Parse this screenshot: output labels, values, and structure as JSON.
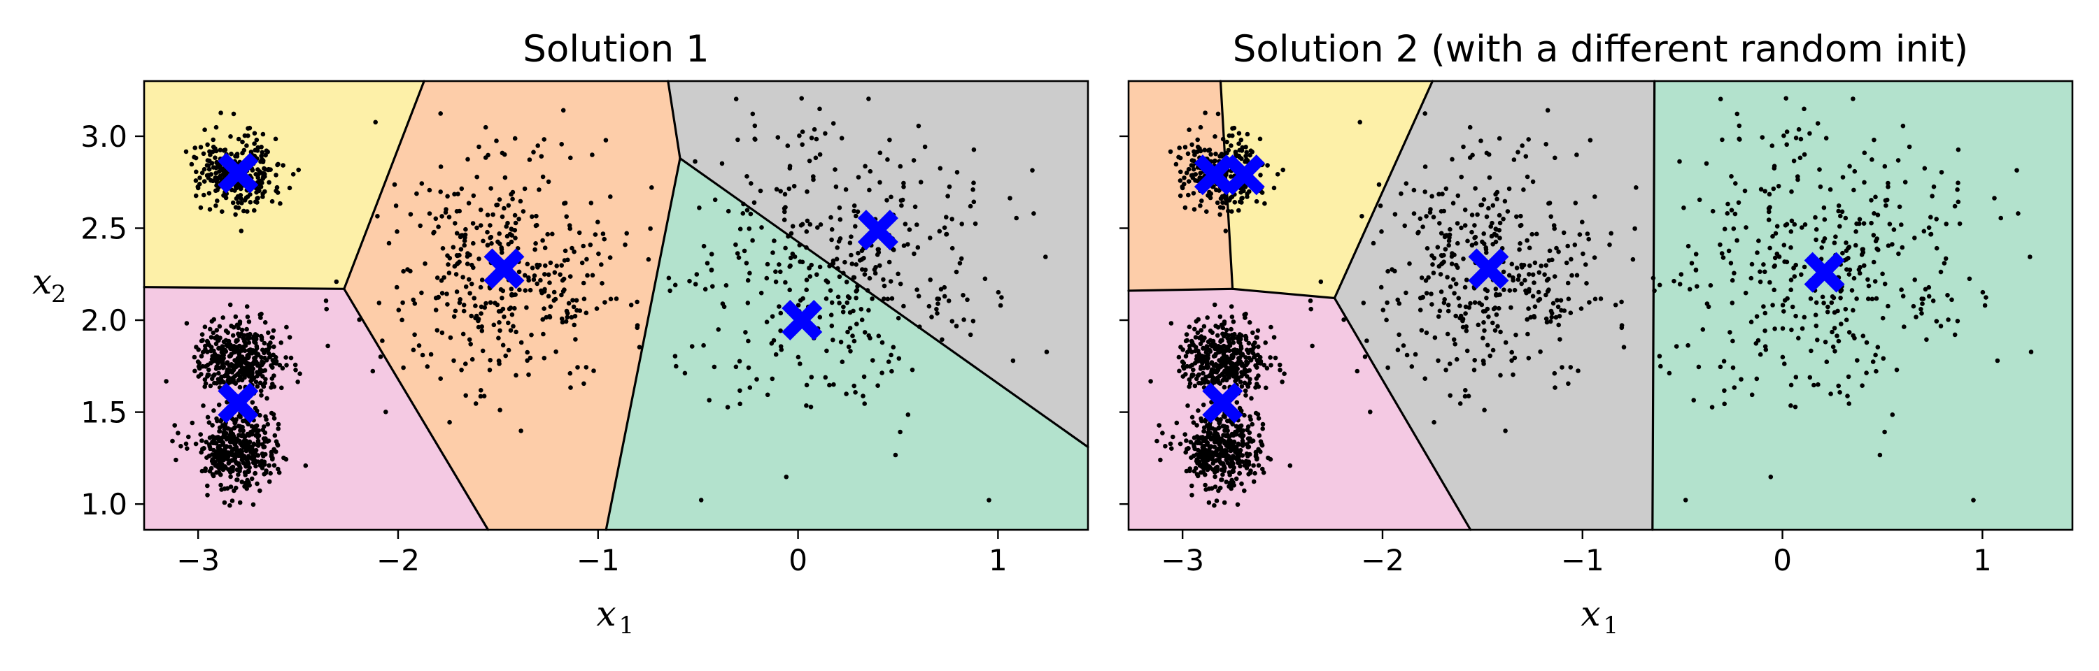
{
  "chart_data": [
    {
      "type": "scatter",
      "title": "Solution 1",
      "xlabel": "x",
      "xlabel_sub": "1",
      "ylabel": "x",
      "ylabel_sub": "2",
      "xlim": [
        -3.27,
        1.45
      ],
      "ylim": [
        0.86,
        3.3
      ],
      "xticks": [
        -3,
        -2,
        -1,
        0,
        1
      ],
      "xtick_labels": [
        "−3",
        "−2",
        "−1",
        "0",
        "1"
      ],
      "yticks": [
        1.0,
        1.5,
        2.0,
        2.5,
        3.0
      ],
      "ytick_labels": [
        "1.0",
        "1.5",
        "2.0",
        "2.5",
        "3.0"
      ],
      "grid": false,
      "centroids": [
        {
          "x": -2.8,
          "y": 2.8
        },
        {
          "x": -2.8,
          "y": 1.55
        },
        {
          "x": -1.47,
          "y": 2.28
        },
        {
          "x": 0.02,
          "y": 2.0
        },
        {
          "x": 0.4,
          "y": 2.49
        }
      ],
      "regions": [
        {
          "color": "#fdf0a8",
          "polygon": [
            [
              -3.27,
              3.3
            ],
            [
              -1.87,
              3.3
            ],
            [
              -2.27,
              2.17
            ],
            [
              -3.27,
              2.18
            ]
          ]
        },
        {
          "color": "#f4c9e3",
          "polygon": [
            [
              -3.27,
              2.18
            ],
            [
              -2.27,
              2.17
            ],
            [
              -1.55,
              0.86
            ],
            [
              -3.27,
              0.86
            ]
          ]
        },
        {
          "color": "#fdcda9",
          "polygon": [
            [
              -1.87,
              3.3
            ],
            [
              -0.65,
              3.3
            ],
            [
              -0.59,
              2.88
            ],
            [
              -0.96,
              0.86
            ],
            [
              -1.55,
              0.86
            ],
            [
              -2.27,
              2.17
            ]
          ]
        },
        {
          "color": "#cccccc",
          "polygon": [
            [
              -0.65,
              3.3
            ],
            [
              1.45,
              3.3
            ],
            [
              1.45,
              1.31
            ],
            [
              -0.59,
              2.88
            ]
          ]
        },
        {
          "color": "#b3e2cd",
          "polygon": [
            [
              -0.59,
              2.88
            ],
            [
              1.45,
              1.31
            ],
            [
              1.45,
              0.86
            ],
            [
              -0.96,
              0.86
            ]
          ]
        }
      ],
      "boundaries": [
        [
          [
            -1.87,
            3.3
          ],
          [
            -2.27,
            2.17
          ]
        ],
        [
          [
            -3.27,
            2.18
          ],
          [
            -2.27,
            2.17
          ]
        ],
        [
          [
            -2.27,
            2.17
          ],
          [
            -1.55,
            0.86
          ]
        ],
        [
          [
            -0.65,
            3.3
          ],
          [
            -0.59,
            2.88
          ]
        ],
        [
          [
            -0.59,
            2.88
          ],
          [
            -0.96,
            0.86
          ]
        ],
        [
          [
            -0.59,
            2.88
          ],
          [
            1.45,
            1.31
          ]
        ]
      ],
      "clusters": [
        {
          "cx": -2.8,
          "cy": 2.8,
          "sx": 0.1,
          "sy": 0.1,
          "n": 300
        },
        {
          "cx": -2.8,
          "cy": 1.8,
          "sx": 0.1,
          "sy": 0.1,
          "n": 400
        },
        {
          "cx": -2.8,
          "cy": 1.3,
          "sx": 0.1,
          "sy": 0.1,
          "n": 400
        },
        {
          "cx": -1.47,
          "cy": 2.28,
          "sx": 0.3,
          "sy": 0.3,
          "n": 400
        },
        {
          "cx": 0.2,
          "cy": 2.3,
          "sx": 0.4,
          "sy": 0.4,
          "n": 400
        }
      ]
    },
    {
      "type": "scatter",
      "title": "Solution 2 (with a different random init)",
      "xlabel": "x",
      "xlabel_sub": "1",
      "ylabel": "",
      "xlim": [
        -3.27,
        1.45
      ],
      "ylim": [
        0.86,
        3.3
      ],
      "xticks": [
        -3,
        -2,
        -1,
        0,
        1
      ],
      "xtick_labels": [
        "−3",
        "−2",
        "−1",
        "0",
        "1"
      ],
      "yticks": [
        1.0,
        1.5,
        2.0,
        2.5,
        3.0
      ],
      "ytick_labels": [],
      "grid": false,
      "centroids": [
        {
          "x": -2.84,
          "y": 2.79
        },
        {
          "x": -2.69,
          "y": 2.79
        },
        {
          "x": -2.8,
          "y": 1.55
        },
        {
          "x": -1.47,
          "y": 2.28
        },
        {
          "x": 0.21,
          "y": 2.26
        }
      ],
      "regions": [
        {
          "color": "#fdcda9",
          "polygon": [
            [
              -3.27,
              3.3
            ],
            [
              -2.81,
              3.3
            ],
            [
              -2.75,
              2.17
            ],
            [
              -3.27,
              2.16
            ]
          ]
        },
        {
          "color": "#fdf0a8",
          "polygon": [
            [
              -2.81,
              3.3
            ],
            [
              -1.75,
              3.3
            ],
            [
              -2.24,
              2.12
            ],
            [
              -2.75,
              2.17
            ]
          ]
        },
        {
          "color": "#f4c9e3",
          "polygon": [
            [
              -3.27,
              2.16
            ],
            [
              -2.75,
              2.17
            ],
            [
              -2.24,
              2.12
            ],
            [
              -1.56,
              0.86
            ],
            [
              -3.27,
              0.86
            ]
          ]
        },
        {
          "color": "#cccccc",
          "polygon": [
            [
              -1.75,
              3.3
            ],
            [
              -0.64,
              3.3
            ],
            [
              -0.65,
              0.86
            ],
            [
              -1.56,
              0.86
            ],
            [
              -2.24,
              2.12
            ]
          ]
        },
        {
          "color": "#b3e2cd",
          "polygon": [
            [
              -0.64,
              3.3
            ],
            [
              1.45,
              3.3
            ],
            [
              1.45,
              0.86
            ],
            [
              -0.65,
              0.86
            ]
          ]
        }
      ],
      "boundaries": [
        [
          [
            -2.81,
            3.3
          ],
          [
            -2.75,
            2.17
          ]
        ],
        [
          [
            -3.27,
            2.16
          ],
          [
            -2.75,
            2.17
          ]
        ],
        [
          [
            -2.75,
            2.17
          ],
          [
            -2.24,
            2.12
          ]
        ],
        [
          [
            -1.75,
            3.3
          ],
          [
            -2.24,
            2.12
          ]
        ],
        [
          [
            -2.24,
            2.12
          ],
          [
            -1.56,
            0.86
          ]
        ],
        [
          [
            -0.64,
            3.3
          ],
          [
            -0.65,
            0.86
          ]
        ]
      ],
      "clusters": [
        {
          "cx": -2.8,
          "cy": 2.8,
          "sx": 0.1,
          "sy": 0.1,
          "n": 300
        },
        {
          "cx": -2.8,
          "cy": 1.8,
          "sx": 0.1,
          "sy": 0.1,
          "n": 400
        },
        {
          "cx": -2.8,
          "cy": 1.3,
          "sx": 0.1,
          "sy": 0.1,
          "n": 400
        },
        {
          "cx": -1.47,
          "cy": 2.28,
          "sx": 0.3,
          "sy": 0.3,
          "n": 400
        },
        {
          "cx": 0.2,
          "cy": 2.3,
          "sx": 0.4,
          "sy": 0.4,
          "n": 400
        }
      ]
    }
  ],
  "colors": {
    "centroid": "#0000ff",
    "point": "#000000",
    "boundary": "#000000"
  }
}
